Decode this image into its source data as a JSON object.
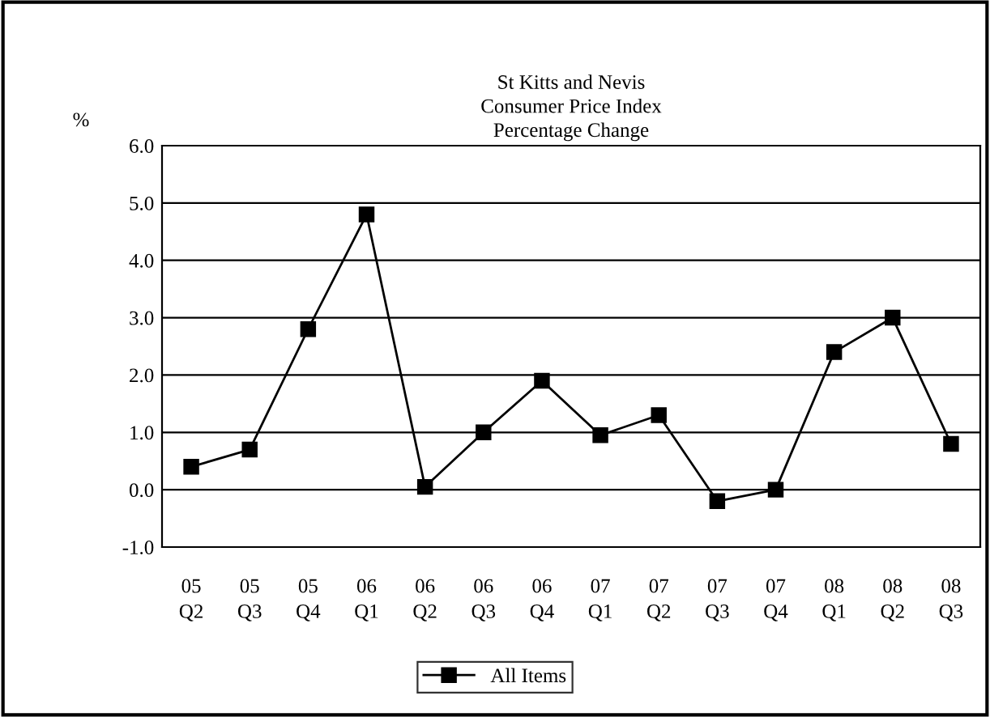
{
  "chart_data": {
    "type": "line",
    "title": "St Kitts and Nevis\nConsumer Price Index\nPercentage Change",
    "ylabel": "%",
    "categories": [
      "05\nQ2",
      "05\nQ3",
      "05\nQ4",
      "06\nQ1",
      "06\nQ2",
      "06\nQ3",
      "06\nQ4",
      "07\nQ1",
      "07\nQ2",
      "07\nQ3",
      "07\nQ4",
      "08\nQ1",
      "08\nQ2",
      "08\nQ3"
    ],
    "series": [
      {
        "name": "All Items",
        "color": "#000000",
        "values": [
          0.4,
          0.7,
          2.8,
          4.8,
          0.05,
          1.0,
          1.9,
          0.95,
          1.3,
          -0.2,
          0.0,
          2.4,
          3.0,
          0.8
        ]
      }
    ],
    "ylim": [
      -1.0,
      6.0
    ],
    "yticks": [
      {
        "value": -1.0,
        "label": "-1.0"
      },
      {
        "value": 0.0,
        "label": "0.0"
      },
      {
        "value": 1.0,
        "label": "1.0"
      },
      {
        "value": 2.0,
        "label": "2.0"
      },
      {
        "value": 3.0,
        "label": "3.0"
      },
      {
        "value": 4.0,
        "label": "4.0"
      },
      {
        "value": 5.0,
        "label": "5.0"
      },
      {
        "value": 6.0,
        "label": "6.0"
      }
    ],
    "grid": "y",
    "legend": "bottom",
    "marker": "square",
    "line_style": "solid"
  }
}
